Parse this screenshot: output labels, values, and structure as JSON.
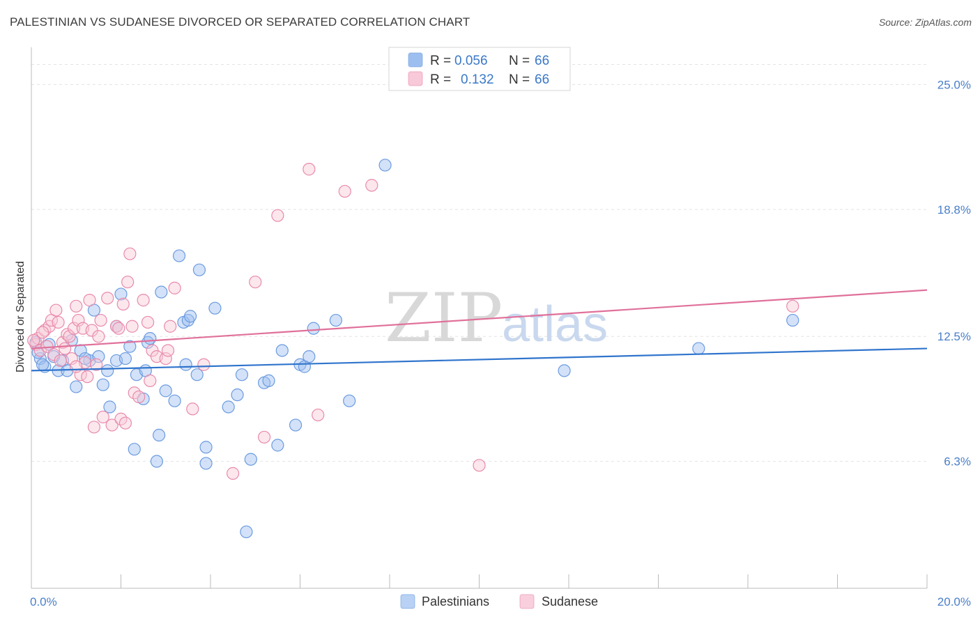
{
  "header": {
    "title": "PALESTINIAN VS SUDANESE DIVORCED OR SEPARATED CORRELATION CHART",
    "source": "Source: ZipAtlas.com"
  },
  "watermark": {
    "zip": "ZIP",
    "atlas": "atlas"
  },
  "legend_top": {
    "r_label": "R =",
    "n_label": "N =",
    "rows": [
      {
        "r": "0.056",
        "n": "66",
        "color": "#9dbff0"
      },
      {
        "r": "0.132",
        "n": "66",
        "color": "#f4b3c8"
      }
    ]
  },
  "legend_bottom": [
    {
      "label": "Palestinians",
      "color": "#9dbff0"
    },
    {
      "label": "Sudanese",
      "color": "#f4b3c8"
    }
  ],
  "chart_data": {
    "type": "scatter",
    "title": "PALESTINIAN VS SUDANESE DIVORCED OR SEPARATED CORRELATION CHART",
    "xlabel": "",
    "ylabel": "Divorced or Separated",
    "xlim": [
      0,
      20
    ],
    "ylim": [
      0,
      26.5
    ],
    "x_tick_labels": [
      "0.0%",
      "20.0%"
    ],
    "y_ticks": [
      6.3,
      12.5,
      18.8,
      25.0
    ],
    "y_tick_labels": [
      "6.3%",
      "12.5%",
      "18.8%",
      "25.0%"
    ],
    "grid": true,
    "legend_placement": "top-center",
    "colors": {
      "Palestinians": "#5b8fd6",
      "Sudanese": "#e784a7",
      "Palestinians_line": "#2f74cc",
      "Sudanese_line": "#e0709a"
    },
    "series": [
      {
        "name": "Palestinians",
        "trend": {
          "x0": 0,
          "y0": 10.8,
          "x1": 20,
          "y1": 11.9
        },
        "points": [
          [
            0.1,
            12.2
          ],
          [
            0.2,
            11.4
          ],
          [
            0.3,
            11.0
          ],
          [
            0.4,
            12.1
          ],
          [
            0.5,
            11.5
          ],
          [
            0.6,
            10.8
          ],
          [
            0.7,
            11.3
          ],
          [
            0.8,
            10.8
          ],
          [
            0.9,
            12.3
          ],
          [
            1.0,
            10.0
          ],
          [
            1.1,
            11.8
          ],
          [
            1.3,
            11.3
          ],
          [
            1.4,
            13.8
          ],
          [
            1.5,
            11.5
          ],
          [
            1.6,
            10.1
          ],
          [
            1.7,
            10.8
          ],
          [
            1.75,
            9.0
          ],
          [
            1.9,
            13.0
          ],
          [
            1.9,
            11.3
          ],
          [
            2.0,
            14.6
          ],
          [
            2.1,
            11.4
          ],
          [
            2.2,
            12.0
          ],
          [
            2.3,
            6.9
          ],
          [
            2.35,
            10.6
          ],
          [
            2.5,
            9.4
          ],
          [
            2.55,
            10.8
          ],
          [
            2.6,
            12.2
          ],
          [
            2.65,
            12.4
          ],
          [
            2.8,
            6.3
          ],
          [
            2.85,
            7.6
          ],
          [
            2.9,
            14.7
          ],
          [
            3.0,
            9.8
          ],
          [
            3.2,
            9.3
          ],
          [
            3.3,
            16.5
          ],
          [
            3.4,
            13.2
          ],
          [
            3.45,
            11.1
          ],
          [
            3.5,
            13.3
          ],
          [
            3.55,
            13.5
          ],
          [
            3.7,
            10.6
          ],
          [
            3.75,
            15.8
          ],
          [
            3.9,
            6.2
          ],
          [
            3.9,
            7.0
          ],
          [
            4.1,
            13.9
          ],
          [
            4.4,
            9.0
          ],
          [
            4.6,
            9.6
          ],
          [
            4.7,
            10.6
          ],
          [
            4.8,
            2.8
          ],
          [
            4.9,
            6.4
          ],
          [
            5.2,
            10.2
          ],
          [
            5.3,
            10.3
          ],
          [
            5.5,
            7.1
          ],
          [
            5.6,
            11.8
          ],
          [
            5.9,
            8.1
          ],
          [
            6.0,
            11.1
          ],
          [
            6.1,
            11.0
          ],
          [
            6.2,
            11.5
          ],
          [
            6.3,
            12.9
          ],
          [
            6.8,
            13.3
          ],
          [
            7.1,
            9.3
          ],
          [
            7.9,
            21.0
          ],
          [
            11.9,
            10.8
          ],
          [
            14.9,
            11.9
          ],
          [
            17.0,
            13.3
          ],
          [
            0.15,
            11.7
          ],
          [
            1.2,
            11.4
          ],
          [
            0.25,
            11.1
          ]
        ]
      },
      {
        "name": "Sudanese",
        "trend": {
          "x0": 0,
          "y0": 11.9,
          "x1": 20,
          "y1": 14.8
        },
        "points": [
          [
            0.1,
            12.1
          ],
          [
            0.15,
            12.4
          ],
          [
            0.2,
            11.8
          ],
          [
            0.3,
            12.8
          ],
          [
            0.35,
            12.0
          ],
          [
            0.4,
            13.0
          ],
          [
            0.45,
            13.3
          ],
          [
            0.5,
            11.6
          ],
          [
            0.55,
            13.8
          ],
          [
            0.6,
            13.2
          ],
          [
            0.7,
            12.2
          ],
          [
            0.8,
            12.6
          ],
          [
            0.85,
            12.5
          ],
          [
            0.9,
            11.4
          ],
          [
            0.95,
            12.9
          ],
          [
            1.0,
            14.0
          ],
          [
            1.05,
            13.3
          ],
          [
            1.1,
            10.6
          ],
          [
            1.15,
            12.9
          ],
          [
            1.2,
            11.2
          ],
          [
            1.25,
            10.5
          ],
          [
            1.3,
            14.3
          ],
          [
            1.35,
            12.8
          ],
          [
            1.4,
            8.0
          ],
          [
            1.5,
            12.5
          ],
          [
            1.55,
            13.3
          ],
          [
            1.6,
            8.5
          ],
          [
            1.7,
            14.4
          ],
          [
            1.8,
            8.1
          ],
          [
            1.9,
            13.0
          ],
          [
            1.95,
            12.9
          ],
          [
            2.0,
            8.4
          ],
          [
            2.05,
            14.1
          ],
          [
            2.1,
            8.2
          ],
          [
            2.15,
            15.2
          ],
          [
            2.2,
            16.6
          ],
          [
            2.3,
            9.7
          ],
          [
            2.4,
            9.5
          ],
          [
            2.5,
            14.3
          ],
          [
            2.6,
            13.2
          ],
          [
            2.65,
            10.3
          ],
          [
            2.7,
            11.8
          ],
          [
            2.8,
            11.5
          ],
          [
            3.0,
            11.4
          ],
          [
            3.05,
            11.8
          ],
          [
            3.1,
            13.0
          ],
          [
            3.2,
            14.9
          ],
          [
            3.6,
            8.9
          ],
          [
            3.85,
            11.1
          ],
          [
            4.5,
            5.7
          ],
          [
            5.0,
            15.2
          ],
          [
            5.2,
            7.5
          ],
          [
            5.5,
            18.5
          ],
          [
            6.2,
            20.8
          ],
          [
            6.4,
            8.6
          ],
          [
            7.0,
            19.7
          ],
          [
            7.6,
            20.0
          ],
          [
            10.0,
            6.1
          ],
          [
            17.0,
            14.0
          ],
          [
            0.25,
            12.7
          ],
          [
            0.65,
            11.3
          ],
          [
            1.45,
            11.1
          ],
          [
            2.25,
            13.0
          ],
          [
            0.75,
            11.9
          ],
          [
            1.0,
            11.0
          ],
          [
            0.05,
            12.3
          ]
        ]
      }
    ]
  }
}
